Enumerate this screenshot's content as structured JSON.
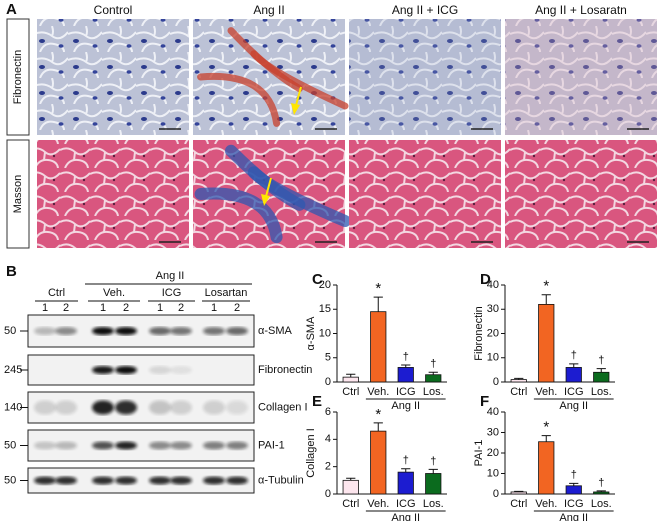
{
  "panel_a": {
    "label": "A",
    "columns": [
      "Control",
      "Ang II",
      "Ang II + ICG",
      "Ang II + Losaratn"
    ],
    "rows": [
      "Fibronectin",
      "Masson"
    ]
  },
  "panel_b": {
    "label": "B",
    "group": "Ang II",
    "groups": [
      "Ctrl",
      "Veh.",
      "ICG",
      "Losartan"
    ],
    "lanes": [
      "1",
      "2",
      "1",
      "2",
      "1",
      "2",
      "1",
      "2"
    ],
    "blots": [
      {
        "marker": "50",
        "name": "α-SMA"
      },
      {
        "marker": "245",
        "name": "Fibronectin"
      },
      {
        "marker": "140",
        "name": "Collagen I"
      },
      {
        "marker": "50",
        "name": "PAI-1"
      },
      {
        "marker": "50",
        "name": "α-Tubulin"
      }
    ]
  },
  "chart_data": [
    {
      "panel": "C",
      "type": "bar",
      "ylabel": "α-SMA",
      "categories": [
        "Ctrl",
        "Veh.",
        "ICG",
        "Los."
      ],
      "values": [
        1,
        14.5,
        3,
        1.5
      ],
      "errors": [
        0.6,
        3,
        0.5,
        0.5
      ],
      "colors": [
        "#fde6ee",
        "#f26522",
        "#1c1cd0",
        "#0b6b1e"
      ],
      "value_annotations": [
        null,
        "*",
        "†",
        "†"
      ],
      "group_label": "Ang II",
      "ylim": [
        0,
        20
      ],
      "yticks": [
        0,
        5,
        10,
        15,
        20
      ]
    },
    {
      "panel": "D",
      "type": "bar",
      "ylabel": "Fibronectin",
      "categories": [
        "Ctrl",
        "Veh.",
        "ICG",
        "Los."
      ],
      "values": [
        1,
        32,
        6,
        4
      ],
      "errors": [
        0.5,
        4,
        1.5,
        1.5
      ],
      "colors": [
        "#fde6ee",
        "#f26522",
        "#1c1cd0",
        "#0b6b1e"
      ],
      "value_annotations": [
        null,
        "*",
        "†",
        "†"
      ],
      "group_label": "Ang II",
      "ylim": [
        0,
        40
      ],
      "yticks": [
        0,
        10,
        20,
        30,
        40
      ]
    },
    {
      "panel": "E",
      "type": "bar",
      "ylabel": "Collagen I",
      "categories": [
        "Ctrl",
        "Veh.",
        "ICG",
        "Los."
      ],
      "values": [
        1,
        4.6,
        1.6,
        1.5
      ],
      "errors": [
        0.15,
        0.6,
        0.25,
        0.3
      ],
      "colors": [
        "#fde6ee",
        "#f26522",
        "#1c1cd0",
        "#0b6b1e"
      ],
      "value_annotations": [
        null,
        "*",
        "†",
        "†"
      ],
      "group_label": "Ang II",
      "ylim": [
        0,
        6
      ],
      "yticks": [
        0,
        2,
        4,
        6
      ]
    },
    {
      "panel": "F",
      "type": "bar",
      "ylabel": "PAI-1",
      "categories": [
        "Ctrl",
        "Veh.",
        "ICG",
        "Los."
      ],
      "values": [
        1,
        25.5,
        4,
        1
      ],
      "errors": [
        0.3,
        3,
        1.2,
        0.5
      ],
      "colors": [
        "#fde6ee",
        "#f26522",
        "#1c1cd0",
        "#0b6b1e"
      ],
      "value_annotations": [
        null,
        "*",
        "†",
        "†"
      ],
      "group_label": "Ang II",
      "ylim": [
        0,
        40
      ],
      "yticks": [
        0,
        10,
        20,
        30,
        40
      ]
    }
  ]
}
